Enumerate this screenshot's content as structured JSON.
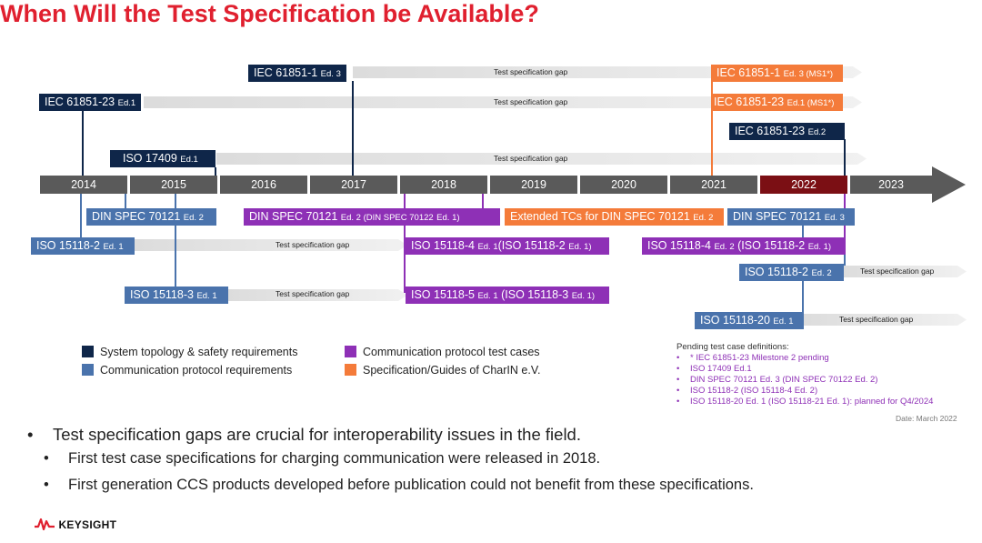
{
  "title": "When Will the Test Specification be Available?",
  "years": [
    "2014",
    "2015",
    "2016",
    "2017",
    "2018",
    "2019",
    "2020",
    "2021",
    "2022",
    "2023"
  ],
  "highlight_year": "2022",
  "gap_label": "Test specification gap",
  "specs": {
    "iec61851_1_ed3": {
      "name": "IEC 61851-1",
      "ed": "Ed. 3"
    },
    "iec61851_23_ed1": {
      "name": "IEC 61851-23",
      "ed": "Ed.1"
    },
    "iso17409_ed1": {
      "name": "ISO 17409",
      "ed": "Ed.1"
    },
    "iec61851_1_ms1": {
      "name": "IEC 61851-1",
      "ed": "Ed. 3 (MS1*)"
    },
    "iec61851_23_ms1": {
      "name": "IEC 61851-23",
      "ed": "Ed.1 (MS1*)"
    },
    "iec61851_23_ed2": {
      "name": "IEC 61851-23",
      "ed": "Ed.2"
    },
    "din70121_ed2": {
      "name": "DIN SPEC 70121",
      "ed": "Ed. 2"
    },
    "din70121_ed2_purple": {
      "name": "DIN SPEC 70121",
      "ed": "Ed. 2 (DIN SPEC 70122",
      "ed2": "Ed. 1)"
    },
    "ext_tcs": {
      "name": "Extended TCs for DIN SPEC 70121",
      "ed": "Ed. 2"
    },
    "din70121_ed3": {
      "name": "DIN SPEC 70121",
      "ed": "Ed. 3"
    },
    "iso15118_2_ed1": {
      "name": "ISO 15118-2",
      "ed": "Ed. 1"
    },
    "iso15118_4_ed1": {
      "name": "ISO 15118-4",
      "ed": "Ed. 1",
      "suffix": "(ISO 15118-2",
      "ed2": "Ed. 1)"
    },
    "iso15118_4_ed2": {
      "name": "ISO 15118-4",
      "ed": "Ed. 2",
      "suffix": "(ISO 15118-2",
      "ed2": "Ed. 1)"
    },
    "iso15118_2_ed2": {
      "name": "ISO 15118-2",
      "ed": "Ed. 2"
    },
    "iso15118_3_ed1": {
      "name": "ISO 15118-3",
      "ed": "Ed. 1"
    },
    "iso15118_5_ed1": {
      "name": "ISO 15118-5",
      "ed": "Ed. 1",
      "suffix": "(ISO 15118-3",
      "ed2": "Ed. 1)"
    },
    "iso15118_20_ed1": {
      "name": "ISO 15118-20",
      "ed": "Ed. 1"
    }
  },
  "legend": [
    {
      "label": "System topology & safety requirements",
      "color": "#0f2649"
    },
    {
      "label": "Communication protocol requirements",
      "color": "#4a73ac"
    },
    {
      "label": "Communication protocol test cases",
      "color": "#8e30b6"
    },
    {
      "label": "Specification/Guides of CharIN e.V.",
      "color": "#f47b3a"
    }
  ],
  "pending": {
    "heading": "Pending test case definitions:",
    "items": [
      "* IEC 61851-23 Milestone 2 pending",
      "ISO 17409 Ed.1",
      "DIN SPEC 70121 Ed. 3 (DIN SPEC 70122 Ed. 2)",
      "ISO 15118-2 (ISO 15118-4 Ed. 2)",
      "ISO 15118-20 Ed. 1 (ISO 15118-21 Ed. 1): planned for Q4/2024"
    ],
    "date": "Date: March 2022"
  },
  "bullets": {
    "main": "Test specification gaps are crucial for interoperability issues in the field.",
    "sub1": "First test case specifications for charging communication were released in 2018.",
    "sub2": "First generation CCS products developed before publication could not benefit from these specifications."
  },
  "brand": "KEYSIGHT",
  "colors": {
    "navy": "#0f2649",
    "blue": "#4a73ac",
    "purple": "#8e30b6",
    "orange": "#f47b3a",
    "highlight": "#7b0f14",
    "red": "#e0202f"
  }
}
